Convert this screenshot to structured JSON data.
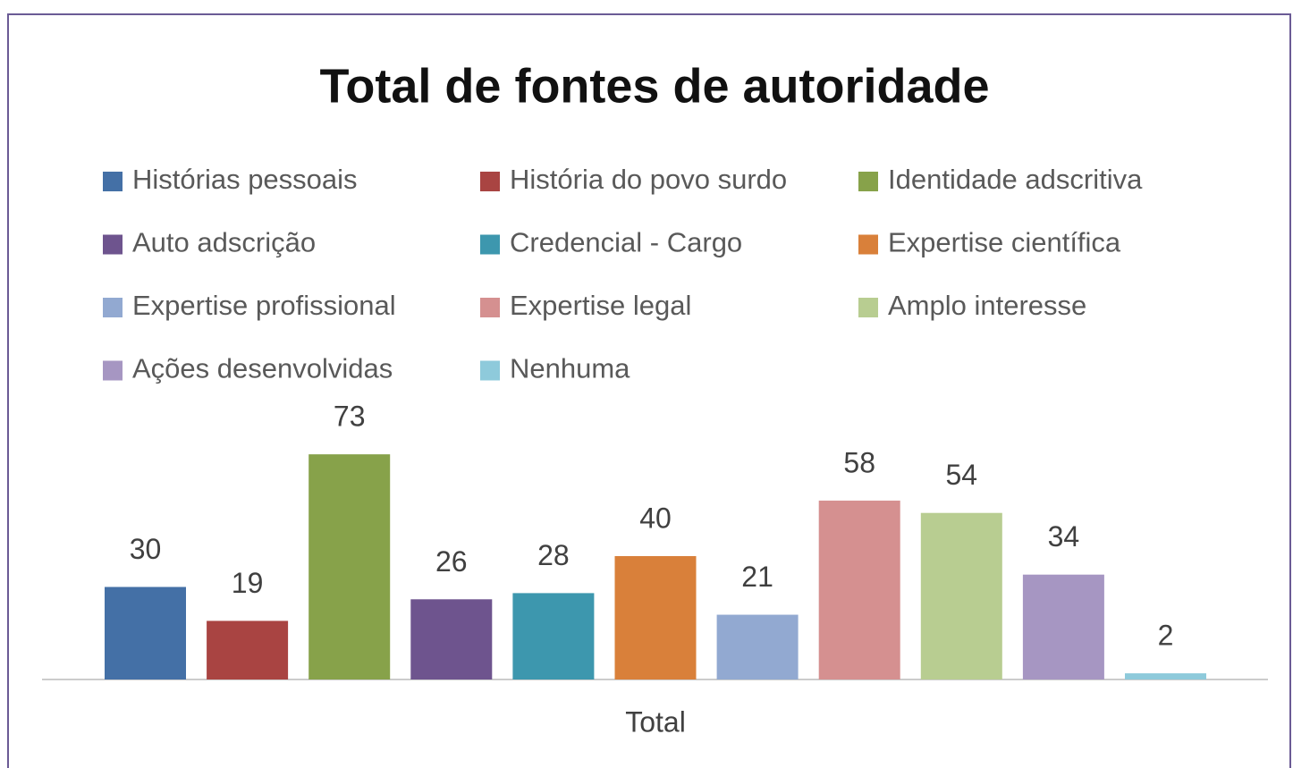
{
  "chart_data": {
    "type": "bar",
    "title": "Total de fontes de autoridade",
    "categories": [
      "Total"
    ],
    "series": [
      {
        "name": "Histórias pessoais",
        "color": "#4470a6",
        "values": [
          30
        ]
      },
      {
        "name": "História do povo surdo",
        "color": "#a94442",
        "values": [
          19
        ]
      },
      {
        "name": "Identidade adscritiva",
        "color": "#87a24a",
        "values": [
          73
        ]
      },
      {
        "name": "Auto adscrição",
        "color": "#6e548e",
        "values": [
          26
        ]
      },
      {
        "name": "Credencial - Cargo",
        "color": "#3d97ae",
        "values": [
          28
        ]
      },
      {
        "name": "Expertise científica",
        "color": "#d9803a",
        "values": [
          40
        ]
      },
      {
        "name": "Expertise profissional",
        "color": "#92a9d1",
        "values": [
          21
        ]
      },
      {
        "name": "Expertise legal",
        "color": "#d59090",
        "values": [
          58
        ]
      },
      {
        "name": "Amplo interesse",
        "color": "#b8cd91",
        "values": [
          54
        ]
      },
      {
        "name": "Ações desenvolvidas",
        "color": "#a696c2",
        "values": [
          34
        ]
      },
      {
        "name": "Nenhuma",
        "color": "#8ecadb",
        "values": [
          2
        ]
      }
    ]
  }
}
